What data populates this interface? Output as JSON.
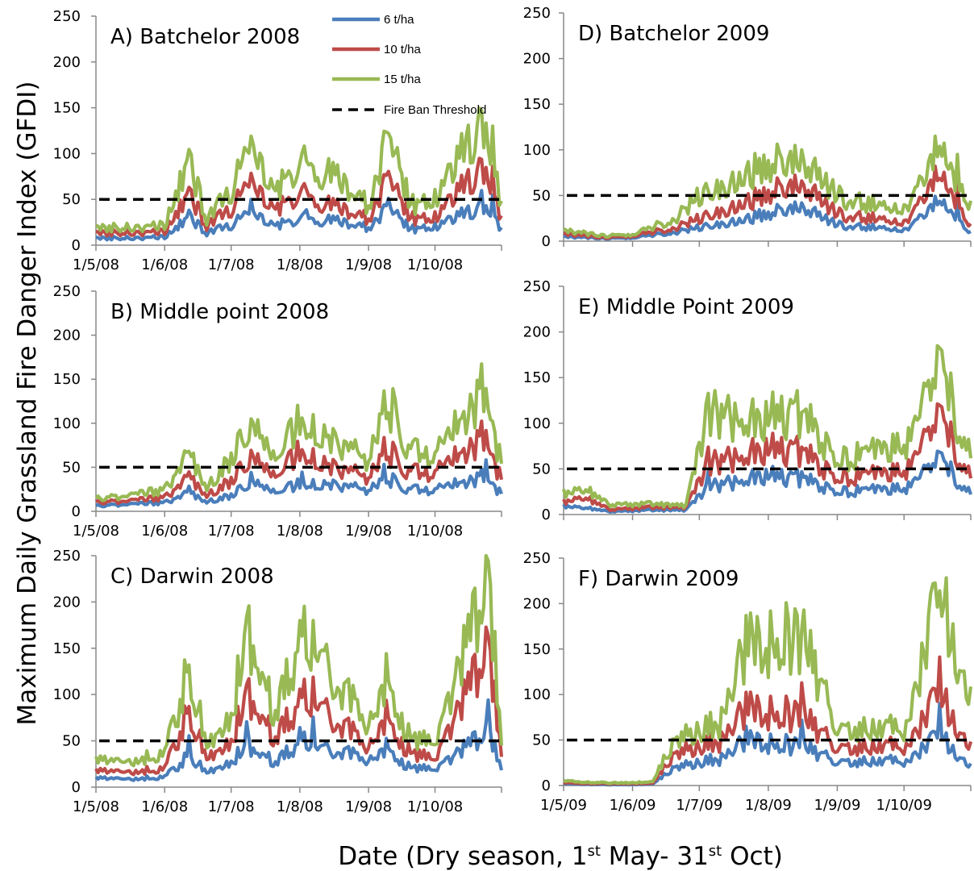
{
  "y_axis_label": "Maximum Daily Grassland  Fire Danger Index (GFDI)",
  "x_axis_label": {
    "text_1": "Date (Dry season, 1",
    "sup_1": "st",
    "text_2": " May- 31",
    "sup_2": "st",
    "text_3": " Oct)"
  },
  "colors": {
    "six": "#4a7ebb",
    "ten": "#be4b48",
    "fifteen": "#98b954",
    "threshold": "#000000"
  },
  "chart_data": [
    {
      "type": "line",
      "title": "A) Batchelor 2008",
      "x_tick_labels": [
        "1/5/08",
        "1/6/08",
        "1/7/08",
        "1/8/08",
        "1/9/08",
        "1/10/08"
      ],
      "y_tick_labels": [
        "0",
        "50",
        "100",
        "150",
        "200",
        "250"
      ],
      "ylim": [
        0,
        250
      ],
      "x_range": [
        "2008-05-01",
        "2008-10-31"
      ],
      "threshold": 50,
      "legend": {
        "position": "top-right",
        "items": [
          "6 t/ha",
          "10 t/ha",
          "15 t/ha",
          "Fire Ban Threshold"
        ]
      },
      "peaks": [
        {
          "date": "2008-06-12",
          "value": 91
        },
        {
          "date": "2008-07-10",
          "value": 119
        },
        {
          "date": "2008-08-04",
          "value": 92
        },
        {
          "date": "2008-09-10",
          "value": 122
        },
        {
          "date": "2008-10-22",
          "value": 142
        },
        {
          "date": "2008-10-27",
          "value": 130
        }
      ],
      "series": [
        {
          "name": "6 t/ha",
          "x": [
            "2008-05-01",
            "2008-05-15",
            "2008-06-01",
            "2008-06-12",
            "2008-06-20",
            "2008-07-01",
            "2008-07-10",
            "2008-07-20",
            "2008-08-01",
            "2008-08-15",
            "2008-09-01",
            "2008-09-10",
            "2008-09-20",
            "2008-10-01",
            "2008-10-22",
            "2008-10-31"
          ],
          "values": [
            8,
            8,
            9,
            30,
            14,
            22,
            40,
            22,
            30,
            28,
            20,
            42,
            18,
            20,
            45,
            18
          ]
        },
        {
          "name": "10 t/ha",
          "x": [
            "2008-05-01",
            "2008-05-15",
            "2008-06-01",
            "2008-06-12",
            "2008-06-20",
            "2008-07-01",
            "2008-07-10",
            "2008-07-20",
            "2008-08-01",
            "2008-08-15",
            "2008-09-01",
            "2008-09-10",
            "2008-09-20",
            "2008-10-01",
            "2008-10-22",
            "2008-10-31"
          ],
          "values": [
            14,
            14,
            15,
            55,
            22,
            40,
            75,
            40,
            58,
            45,
            30,
            75,
            30,
            30,
            90,
            30
          ]
        },
        {
          "name": "15 t/ha",
          "x": [
            "2008-05-01",
            "2008-05-15",
            "2008-06-01",
            "2008-06-12",
            "2008-06-20",
            "2008-07-01",
            "2008-07-10",
            "2008-07-20",
            "2008-08-01",
            "2008-08-15",
            "2008-09-01",
            "2008-09-10",
            "2008-09-20",
            "2008-10-01",
            "2008-10-22",
            "2008-10-31"
          ],
          "values": [
            20,
            20,
            22,
            91,
            30,
            60,
            119,
            60,
            92,
            80,
            45,
            122,
            45,
            50,
            142,
            45
          ]
        }
      ]
    },
    {
      "type": "line",
      "title": "B) Middle point 2008",
      "x_tick_labels": [
        "1/5/08",
        "1/6/08",
        "1/7/08",
        "1/8/08",
        "1/9/08",
        "1/10/08"
      ],
      "y_tick_labels": [
        "0",
        "50",
        "100",
        "150",
        "200",
        "250"
      ],
      "ylim": [
        0,
        250
      ],
      "x_range": [
        "2008-05-01",
        "2008-10-31"
      ],
      "threshold": 50,
      "peaks": [
        {
          "date": "2008-06-12",
          "value": 68
        },
        {
          "date": "2008-07-10",
          "value": 105
        },
        {
          "date": "2008-08-02",
          "value": 106
        },
        {
          "date": "2008-09-08",
          "value": 127
        },
        {
          "date": "2008-10-24",
          "value": 139
        }
      ],
      "series": [
        {
          "name": "6 t/ha",
          "x": [
            "2008-05-01",
            "2008-05-15",
            "2008-06-01",
            "2008-06-12",
            "2008-06-20",
            "2008-07-01",
            "2008-07-10",
            "2008-07-20",
            "2008-08-01",
            "2008-08-15",
            "2008-09-01",
            "2008-09-10",
            "2008-09-20",
            "2008-10-01",
            "2008-10-22",
            "2008-10-31"
          ],
          "values": [
            6,
            8,
            10,
            22,
            12,
            18,
            35,
            22,
            32,
            30,
            25,
            38,
            25,
            25,
            40,
            22
          ]
        },
        {
          "name": "10 t/ha",
          "x": [
            "2008-05-01",
            "2008-05-15",
            "2008-06-01",
            "2008-06-12",
            "2008-06-20",
            "2008-07-01",
            "2008-07-10",
            "2008-07-20",
            "2008-08-01",
            "2008-08-15",
            "2008-09-01",
            "2008-09-10",
            "2008-09-20",
            "2008-10-01",
            "2008-10-22",
            "2008-10-31"
          ],
          "values": [
            10,
            12,
            16,
            40,
            20,
            35,
            65,
            40,
            70,
            50,
            40,
            70,
            45,
            45,
            85,
            40
          ]
        },
        {
          "name": "15 t/ha",
          "x": [
            "2008-05-01",
            "2008-05-15",
            "2008-06-01",
            "2008-06-12",
            "2008-06-20",
            "2008-07-01",
            "2008-07-10",
            "2008-07-20",
            "2008-08-01",
            "2008-08-15",
            "2008-09-01",
            "2008-09-10",
            "2008-09-20",
            "2008-10-01",
            "2008-10-22",
            "2008-10-31"
          ],
          "values": [
            14,
            18,
            25,
            68,
            30,
            60,
            105,
            60,
            106,
            80,
            60,
            127,
            70,
            65,
            139,
            60
          ]
        }
      ]
    },
    {
      "type": "line",
      "title": "C) Darwin 2008",
      "x_tick_labels": [
        "1/5/08",
        "1/6/08",
        "1/7/08",
        "1/8/08",
        "1/9/08",
        "1/10/08"
      ],
      "y_tick_labels": [
        "0",
        "50",
        "100",
        "150",
        "200",
        "250"
      ],
      "ylim": [
        0,
        250
      ],
      "x_range": [
        "2008-05-01",
        "2008-10-31"
      ],
      "threshold": 50,
      "peaks": [
        {
          "date": "2008-06-12",
          "value": 132
        },
        {
          "date": "2008-07-08",
          "value": 168
        },
        {
          "date": "2008-08-01",
          "value": 153
        },
        {
          "date": "2008-08-07",
          "value": 180
        },
        {
          "date": "2008-09-09",
          "value": 123
        },
        {
          "date": "2008-10-25",
          "value": 224
        }
      ],
      "series": [
        {
          "name": "6 t/ha",
          "x": [
            "2008-05-01",
            "2008-05-15",
            "2008-06-01",
            "2008-06-12",
            "2008-06-20",
            "2008-07-01",
            "2008-07-08",
            "2008-07-20",
            "2008-08-01",
            "2008-08-07",
            "2008-08-20",
            "2008-09-01",
            "2008-09-09",
            "2008-09-20",
            "2008-10-01",
            "2008-10-25",
            "2008-10-31"
          ],
          "values": [
            10,
            8,
            12,
            35,
            18,
            30,
            45,
            30,
            48,
            52,
            40,
            30,
            45,
            20,
            22,
            60,
            25
          ]
        },
        {
          "name": "10 t/ha",
          "x": [
            "2008-05-01",
            "2008-05-15",
            "2008-06-01",
            "2008-06-12",
            "2008-06-20",
            "2008-07-01",
            "2008-07-08",
            "2008-07-20",
            "2008-08-01",
            "2008-08-07",
            "2008-08-20",
            "2008-09-01",
            "2008-09-09",
            "2008-09-20",
            "2008-10-01",
            "2008-10-25",
            "2008-10-31"
          ],
          "values": [
            18,
            15,
            22,
            85,
            35,
            55,
            100,
            60,
            90,
            110,
            70,
            45,
            80,
            35,
            35,
            150,
            45
          ]
        },
        {
          "name": "15 t/ha",
          "x": [
            "2008-05-01",
            "2008-05-15",
            "2008-06-01",
            "2008-06-12",
            "2008-06-20",
            "2008-07-01",
            "2008-07-08",
            "2008-07-20",
            "2008-08-01",
            "2008-08-07",
            "2008-08-20",
            "2008-09-01",
            "2008-09-09",
            "2008-09-20",
            "2008-10-01",
            "2008-10-25",
            "2008-10-31"
          ],
          "values": [
            30,
            25,
            40,
            132,
            50,
            85,
            168,
            90,
            153,
            180,
            110,
            70,
            123,
            50,
            55,
            224,
            62
          ]
        }
      ]
    },
    {
      "type": "line",
      "title": "D) Batchelor 2009",
      "x_tick_labels": [],
      "y_tick_labels": [
        "0",
        "50",
        "100",
        "150",
        "200",
        "250"
      ],
      "ylim": [
        0,
        250
      ],
      "x_range": [
        "2009-05-01",
        "2009-10-31"
      ],
      "threshold": 50,
      "peaks": [
        {
          "date": "2009-07-28",
          "value": 82
        },
        {
          "date": "2009-08-16",
          "value": 100
        },
        {
          "date": "2009-10-17",
          "value": 104
        },
        {
          "date": "2009-10-25",
          "value": 95
        }
      ],
      "series": [
        {
          "name": "6 t/ha",
          "x": [
            "2009-05-01",
            "2009-05-20",
            "2009-06-01",
            "2009-06-20",
            "2009-07-01",
            "2009-07-28",
            "2009-08-16",
            "2009-09-01",
            "2009-09-20",
            "2009-10-01",
            "2009-10-17",
            "2009-10-31"
          ],
          "values": [
            5,
            3,
            4,
            10,
            15,
            28,
            42,
            18,
            15,
            12,
            45,
            10
          ]
        },
        {
          "name": "10 t/ha",
          "x": [
            "2009-05-01",
            "2009-05-20",
            "2009-06-01",
            "2009-06-20",
            "2009-07-01",
            "2009-07-28",
            "2009-08-16",
            "2009-09-01",
            "2009-09-20",
            "2009-10-01",
            "2009-10-17",
            "2009-10-31"
          ],
          "values": [
            8,
            4,
            6,
            15,
            25,
            50,
            70,
            30,
            25,
            20,
            75,
            18
          ]
        },
        {
          "name": "15 t/ha",
          "x": [
            "2009-05-01",
            "2009-05-20",
            "2009-06-01",
            "2009-06-20",
            "2009-07-01",
            "2009-07-28",
            "2009-08-16",
            "2009-09-01",
            "2009-09-20",
            "2009-10-01",
            "2009-10-17",
            "2009-10-31"
          ],
          "values": [
            12,
            6,
            8,
            25,
            50,
            82,
            100,
            50,
            40,
            35,
            104,
            42
          ]
        }
      ]
    },
    {
      "type": "line",
      "title": "E) Middle Point 2009",
      "x_tick_labels": [],
      "y_tick_labels": [
        "0",
        "50",
        "100",
        "150",
        "200",
        "250"
      ],
      "ylim": [
        0,
        250
      ],
      "x_range": [
        "2009-05-01",
        "2009-10-31"
      ],
      "threshold": 50,
      "peaks": [
        {
          "date": "2009-07-05",
          "value": 112
        },
        {
          "date": "2009-07-28",
          "value": 110
        },
        {
          "date": "2009-08-16",
          "value": 112
        },
        {
          "date": "2009-10-17",
          "value": 160
        }
      ],
      "series": [
        {
          "name": "6 t/ha",
          "x": [
            "2009-05-01",
            "2009-05-10",
            "2009-05-22",
            "2009-06-10",
            "2009-06-25",
            "2009-07-05",
            "2009-07-28",
            "2009-08-16",
            "2009-09-01",
            "2009-10-01",
            "2009-10-17",
            "2009-10-31"
          ],
          "values": [
            10,
            8,
            3,
            5,
            5,
            30,
            45,
            40,
            25,
            30,
            60,
            25
          ]
        },
        {
          "name": "10 t/ha",
          "x": [
            "2009-05-01",
            "2009-05-10",
            "2009-05-22",
            "2009-06-10",
            "2009-06-25",
            "2009-07-05",
            "2009-07-28",
            "2009-08-16",
            "2009-09-01",
            "2009-10-01",
            "2009-10-17",
            "2009-10-31"
          ],
          "values": [
            15,
            20,
            5,
            8,
            8,
            55,
            75,
            70,
            40,
            50,
            105,
            45
          ]
        },
        {
          "name": "15 t/ha",
          "x": [
            "2009-05-01",
            "2009-05-10",
            "2009-05-22",
            "2009-06-10",
            "2009-06-25",
            "2009-07-05",
            "2009-07-28",
            "2009-08-16",
            "2009-09-01",
            "2009-10-01",
            "2009-10-17",
            "2009-10-31"
          ],
          "values": [
            25,
            30,
            10,
            12,
            10,
            112,
            110,
            112,
            60,
            80,
            160,
            70
          ]
        }
      ]
    },
    {
      "type": "line",
      "title": "F) Darwin 2009",
      "x_tick_labels": [
        "1/5/09",
        "1/6/09",
        "1/7/09",
        "1/8/09",
        "1/9/09",
        "1/10/09"
      ],
      "y_tick_labels": [
        "0",
        "50",
        "100",
        "150",
        "200",
        "250"
      ],
      "ylim": [
        0,
        250
      ],
      "x_range": [
        "2009-05-01",
        "2009-10-31"
      ],
      "threshold": 50,
      "peaks": [
        {
          "date": "2009-07-22",
          "value": 155
        },
        {
          "date": "2009-07-28",
          "value": 131
        },
        {
          "date": "2009-08-16",
          "value": 171
        },
        {
          "date": "2009-10-17",
          "value": 214
        }
      ],
      "series": [
        {
          "name": "6 t/ha",
          "x": [
            "2009-05-01",
            "2009-05-20",
            "2009-06-01",
            "2009-06-10",
            "2009-06-20",
            "2009-07-10",
            "2009-07-22",
            "2009-08-16",
            "2009-09-01",
            "2009-10-01",
            "2009-10-17",
            "2009-10-31"
          ],
          "values": [
            2,
            1,
            1,
            2,
            20,
            30,
            50,
            45,
            25,
            28,
            55,
            20
          ]
        },
        {
          "name": "10 t/ha",
          "x": [
            "2009-05-01",
            "2009-05-20",
            "2009-06-01",
            "2009-06-10",
            "2009-06-20",
            "2009-07-10",
            "2009-07-22",
            "2009-08-16",
            "2009-09-01",
            "2009-10-01",
            "2009-10-17",
            "2009-10-31"
          ],
          "values": [
            3,
            2,
            2,
            3,
            35,
            50,
            85,
            80,
            40,
            45,
            100,
            40
          ]
        },
        {
          "name": "15 t/ha",
          "x": [
            "2009-05-01",
            "2009-05-20",
            "2009-06-01",
            "2009-06-10",
            "2009-06-20",
            "2009-07-10",
            "2009-07-22",
            "2009-08-16",
            "2009-09-01",
            "2009-10-01",
            "2009-10-17",
            "2009-10-31"
          ],
          "values": [
            5,
            3,
            3,
            5,
            50,
            70,
            155,
            171,
            60,
            65,
            214,
            90
          ]
        }
      ]
    }
  ]
}
